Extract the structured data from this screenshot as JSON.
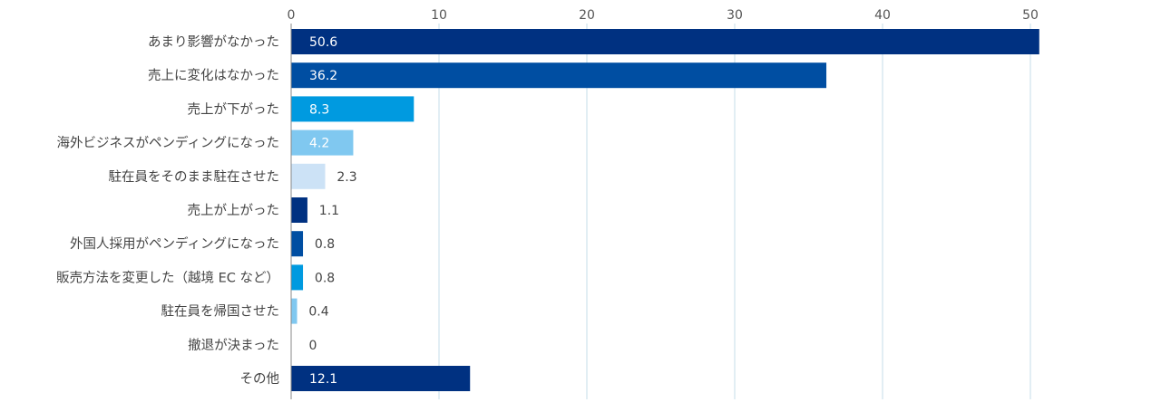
{
  "chart_data": {
    "type": "bar",
    "orientation": "horizontal",
    "xlim": [
      0,
      50
    ],
    "ticks": [
      "0",
      "10",
      "20",
      "30",
      "40",
      "50"
    ],
    "grid": true,
    "axis_position": "top",
    "categories": [
      "あまり影響がなかった",
      "売上に変化はなかった",
      "売上が下がった",
      "海外ビジネスがペンディングになった",
      "駐在員をそのまま駐在させた",
      "売上が上がった",
      "外国人採用がペンディングになった",
      "販売方法を変更した（越境 EC など）",
      "駐在員を帰国させた",
      "撤退が決まった",
      "その他"
    ],
    "values": [
      50.6,
      36.2,
      8.3,
      4.2,
      2.3,
      1.1,
      0.8,
      0.8,
      0.4,
      0,
      12.1
    ],
    "labels": [
      "50.6",
      "36.2",
      "8.3",
      "4.2",
      "2.3",
      "1.1",
      "0.8",
      "0.8",
      "0.4",
      "0",
      "12.1"
    ],
    "colors": [
      "#003181",
      "#004ea2",
      "#009ae0",
      "#80c8f0",
      "#cce2f6",
      "#003181",
      "#004ea2",
      "#009ae0",
      "#80c8f0",
      "#cce2f6",
      "#003181"
    ],
    "colors_note": "",
    "label_colors": {
      "inside": "#ffffff",
      "outside": "#444444"
    }
  }
}
